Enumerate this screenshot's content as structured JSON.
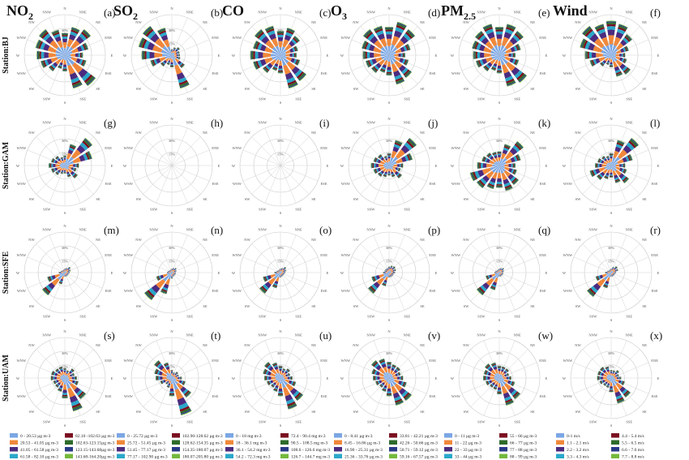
{
  "figure": {
    "row_labels": [
      "Station:BJ",
      "Station:GAM",
      "Station:SFE",
      "Station:UAM"
    ],
    "panel_letters": [
      "(a)",
      "(b)",
      "(c)",
      "(d)",
      "(e)",
      "(f)",
      "(g)",
      "(h)",
      "(i)",
      "(j)",
      "(k)",
      "(l)",
      "(m)",
      "(n)",
      "(o)",
      "(p)",
      "(q)",
      "(r)",
      "(s)",
      "(t)",
      "(u)",
      "(v)",
      "(w)",
      "(x)"
    ],
    "directions": [
      "N",
      "NNE",
      "NE",
      "ENE",
      "E",
      "ESE",
      "SE",
      "SSE",
      "S",
      "SSW",
      "SW",
      "WSW",
      "W",
      "WNW",
      "NW",
      "NNW"
    ]
  },
  "chart_data": {
    "type": "rose",
    "columns": [
      {
        "title_main": "NO",
        "title_sub": "2",
        "legend": [
          "0 - 20.53 µg m-3",
          "20.53 - 41.05 µg m-3",
          "41.05 - 61.58 µg m-3",
          "61.58 - 82.10 µg m-3",
          "82.10 -102.63 µg m-3",
          "102.63-123.15µg m-3",
          "123.15-143.68µg m-3",
          "143.68-164.20µg m-3"
        ]
      },
      {
        "title_main": "SO",
        "title_sub": "2",
        "legend": [
          "0 - 25.72 µg m-3",
          "25.72 - 51.45 µg m-3",
          "51.45 - 77.17 µg m-3",
          "77.17 - 102.90 µg m-3",
          "102.90-128.62 µg m-3",
          "128.62-154.35 µg m-3",
          "154.35-180.07 µg m-3",
          "180.07-205.80 µg m-3"
        ]
      },
      {
        "title_main": "CO",
        "title_sub": "",
        "legend": [
          "0 - 18 mg m-3",
          "18 - 36.1 mg m-3",
          "36.1 - 54.2 mg m-3",
          "54.2 - 72.3 mg m-3",
          "72.4 - 90.4 mg m-3",
          "90.5 - 108.5 mg m-3",
          "108.6 - 126.6 mg m-3",
          "126.7 - 144.7 mg m-3"
        ]
      },
      {
        "title_main": "O",
        "title_sub": "3",
        "legend": [
          "0 - 8.41 µg m-3",
          "8.45 - 16.86 µg m-3",
          "16.90 - 25.31 µg m-3",
          "25.36 - 33.76 µg m-3",
          "33.81 - 42.21 µg m-3",
          "42.26 - 50.66 µg m-3",
          "50.71 - 59.12 µg m-3",
          "59.16 - 67.57 µg m-3"
        ]
      },
      {
        "title_main": "PM",
        "title_sub": "2.5",
        "legend": [
          "0 - 11 µg m-3",
          "11 - 22 µg m-3",
          "22 - 33 µg m-3",
          "33 - 44 µg m-3",
          "55 - 66 µg m-3",
          "66 - 77 µg m-3",
          "77 - 88 µg m-3",
          "88 - 99 µg m-3"
        ]
      },
      {
        "title_main": "Wind",
        "title_sub": "",
        "legend": [
          "0-1 m/s",
          "1.1 - 2.1 m/s",
          "2.2 - 3.2 m/s",
          "3.3 - 4.3 m/s",
          "4.4 - 5.4 m/s",
          "5.5 - 6.5 m/s",
          "6.6 - 7.6 m/s",
          "7.7 - 8.8 m/s"
        ]
      }
    ],
    "bin_colors": [
      "#7aa6e3",
      "#f0883b",
      "#4b2b7f",
      "#2aa7c9",
      "#7a1020",
      "#2d6b2a",
      "#283a86",
      "#73b83c"
    ],
    "ring_labels": [
      "15%",
      "30%"
    ],
    "panels": [
      {
        "petals": [
          0.55,
          0.72,
          0.8,
          0.6,
          0.45,
          0.55,
          0.95,
          0.85,
          0.4,
          0.35,
          0.5,
          0.62,
          0.7,
          0.75,
          0.8,
          0.65
        ]
      },
      {
        "petals": [
          0.15,
          0.2,
          0.25,
          0.2,
          0.2,
          0.22,
          0.4,
          0.85,
          0.3,
          0.25,
          0.35,
          0.55,
          0.75,
          0.85,
          0.9,
          0.7
        ]
      },
      {
        "petals": [
          0.6,
          0.7,
          0.6,
          0.45,
          0.4,
          0.5,
          0.8,
          0.85,
          0.45,
          0.4,
          0.55,
          0.7,
          0.75,
          0.7,
          0.8,
          0.75
        ]
      },
      {
        "petals": [
          0.7,
          0.85,
          0.8,
          0.55,
          0.4,
          0.5,
          0.7,
          0.75,
          0.5,
          0.45,
          0.55,
          0.6,
          0.65,
          0.7,
          0.8,
          0.75
        ]
      },
      {
        "petals": [
          0.7,
          0.8,
          0.75,
          0.55,
          0.4,
          0.5,
          0.85,
          0.8,
          0.45,
          0.4,
          0.5,
          0.6,
          0.65,
          0.7,
          0.75,
          0.8
        ]
      },
      {
        "petals": [
          0.85,
          0.8,
          0.65,
          0.45,
          0.35,
          0.4,
          0.6,
          0.55,
          0.3,
          0.25,
          0.35,
          0.55,
          0.65,
          0.8,
          0.9,
          0.8
        ]
      },
      {
        "petals": [
          0.25,
          0.55,
          0.85,
          0.7,
          0.35,
          0.3,
          0.4,
          0.3,
          0.2,
          0.22,
          0.3,
          0.35,
          0.4,
          0.35,
          0.3,
          0.22
        ]
      },
      {
        "petals": []
      },
      {
        "petals": []
      },
      {
        "petals": [
          0.3,
          0.65,
          0.85,
          0.6,
          0.35,
          0.3,
          0.4,
          0.3,
          0.25,
          0.3,
          0.35,
          0.4,
          0.45,
          0.4,
          0.35,
          0.25
        ]
      },
      {
        "petals": [
          0.35,
          0.55,
          0.75,
          0.55,
          0.4,
          0.45,
          0.6,
          0.65,
          0.55,
          0.6,
          0.7,
          0.75,
          0.55,
          0.45,
          0.4,
          0.35
        ]
      },
      {
        "petals": [
          0.3,
          0.65,
          0.85,
          0.55,
          0.35,
          0.4,
          0.55,
          0.45,
          0.3,
          0.35,
          0.45,
          0.55,
          0.4,
          0.35,
          0.3,
          0.25
        ]
      },
      {
        "petals": [
          0.1,
          0.12,
          0.18,
          0.15,
          0.12,
          0.1,
          0.1,
          0.1,
          0.1,
          0.3,
          0.7,
          0.45,
          0.15,
          0.1,
          0.08,
          0.08
        ]
      },
      {
        "petals": [
          0.1,
          0.12,
          0.15,
          0.12,
          0.1,
          0.1,
          0.1,
          0.1,
          0.15,
          0.55,
          0.85,
          0.4,
          0.12,
          0.1,
          0.08,
          0.08
        ]
      },
      {
        "petals": [
          0.1,
          0.12,
          0.18,
          0.15,
          0.12,
          0.1,
          0.1,
          0.1,
          0.12,
          0.4,
          0.65,
          0.45,
          0.15,
          0.1,
          0.08,
          0.08
        ]
      },
      {
        "petals": [
          0.15,
          0.18,
          0.2,
          0.18,
          0.15,
          0.12,
          0.12,
          0.12,
          0.12,
          0.35,
          0.65,
          0.45,
          0.15,
          0.12,
          0.12,
          0.12
        ]
      },
      {
        "petals": [
          0.1,
          0.12,
          0.15,
          0.12,
          0.1,
          0.1,
          0.1,
          0.1,
          0.1,
          0.45,
          0.7,
          0.35,
          0.12,
          0.1,
          0.08,
          0.08
        ]
      },
      {
        "petals": [
          0.1,
          0.15,
          0.2,
          0.18,
          0.12,
          0.1,
          0.1,
          0.1,
          0.1,
          0.4,
          0.75,
          0.4,
          0.15,
          0.1,
          0.08,
          0.08
        ]
      },
      {
        "petals": [
          0.25,
          0.2,
          0.3,
          0.25,
          0.3,
          0.35,
          0.65,
          0.85,
          0.5,
          0.35,
          0.3,
          0.3,
          0.35,
          0.35,
          0.3,
          0.3
        ]
      },
      {
        "petals": [
          0.2,
          0.15,
          0.2,
          0.18,
          0.25,
          0.35,
          0.6,
          0.95,
          0.45,
          0.25,
          0.2,
          0.3,
          0.4,
          0.45,
          0.55,
          0.4
        ]
      },
      {
        "petals": [
          0.3,
          0.25,
          0.3,
          0.25,
          0.3,
          0.4,
          0.7,
          0.8,
          0.45,
          0.35,
          0.3,
          0.35,
          0.4,
          0.45,
          0.5,
          0.4
        ]
      },
      {
        "petals": [
          0.4,
          0.35,
          0.35,
          0.3,
          0.35,
          0.45,
          0.7,
          0.7,
          0.45,
          0.35,
          0.3,
          0.35,
          0.4,
          0.45,
          0.55,
          0.5
        ]
      },
      {
        "petals": [
          0.3,
          0.3,
          0.3,
          0.25,
          0.3,
          0.4,
          0.65,
          0.7,
          0.4,
          0.3,
          0.3,
          0.35,
          0.4,
          0.4,
          0.45,
          0.4
        ]
      },
      {
        "petals": [
          0.2,
          0.2,
          0.25,
          0.2,
          0.25,
          0.35,
          0.6,
          0.65,
          0.35,
          0.25,
          0.25,
          0.3,
          0.35,
          0.35,
          0.35,
          0.3
        ]
      }
    ]
  }
}
